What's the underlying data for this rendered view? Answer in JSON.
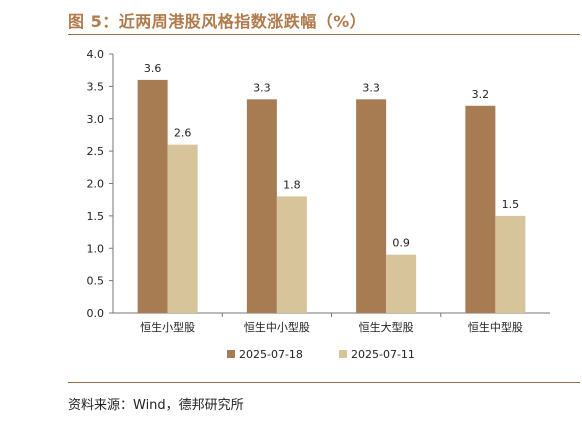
{
  "figure": {
    "title": "图 5：近两周港股风格指数涨跌幅（%）",
    "source": "资料来源：Wind，德邦研究所"
  },
  "chart_data": {
    "type": "bar",
    "title": "",
    "xlabel": "",
    "ylabel": "",
    "categories": [
      "恒生小型股",
      "恒生中小型股",
      "恒生大型股",
      "恒生中型股"
    ],
    "series": [
      {
        "name": "2025-07-18",
        "values": [
          3.6,
          3.3,
          3.3,
          3.2
        ],
        "color": "#a87c53"
      },
      {
        "name": "2025-07-11",
        "values": [
          2.6,
          1.8,
          0.9,
          1.5
        ],
        "color": "#d8c49b"
      }
    ],
    "ylim": [
      0,
      4
    ],
    "yticks": [
      "0.0",
      "0.5",
      "1.0",
      "1.5",
      "2.0",
      "2.5",
      "3.0",
      "3.5",
      "4.0"
    ],
    "grid": false,
    "legend_position": "bottom-center"
  }
}
